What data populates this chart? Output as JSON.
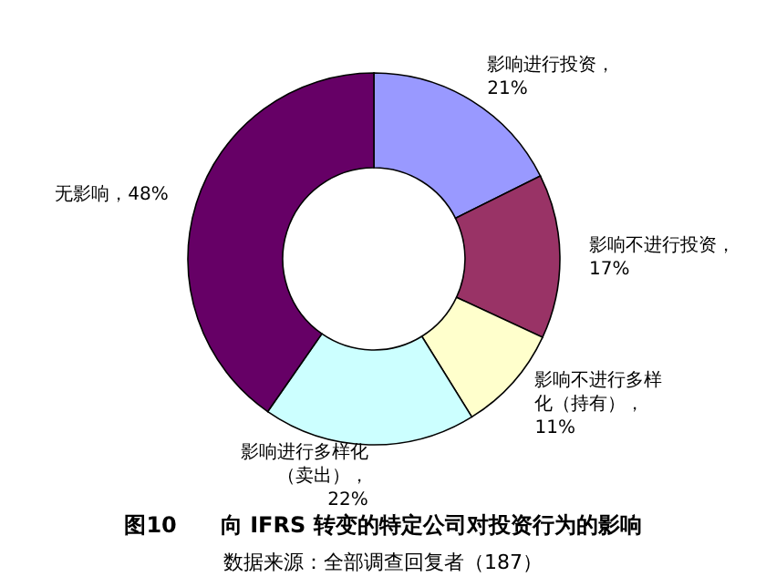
{
  "chart_data": {
    "type": "donut",
    "title": "图10　　向 IFRS 转变的特定公司对投资行为的影响",
    "annotations": [
      "数据来源：全部调查回复者（187）"
    ],
    "categories": [
      "影响进行投资",
      "影响不进行投资",
      "影响不进行多样化（持有）",
      "影响进行多样化（卖出）",
      "无影响"
    ],
    "values": [
      21,
      17,
      11,
      22,
      48
    ],
    "value_labels": [
      "，21%",
      "，17%",
      "，11%",
      "，22%",
      "，48%"
    ],
    "colors": [
      "#9999ff",
      "#993366",
      "#ffffcc",
      "#ccffff",
      "#660066"
    ],
    "legend": false
  }
}
